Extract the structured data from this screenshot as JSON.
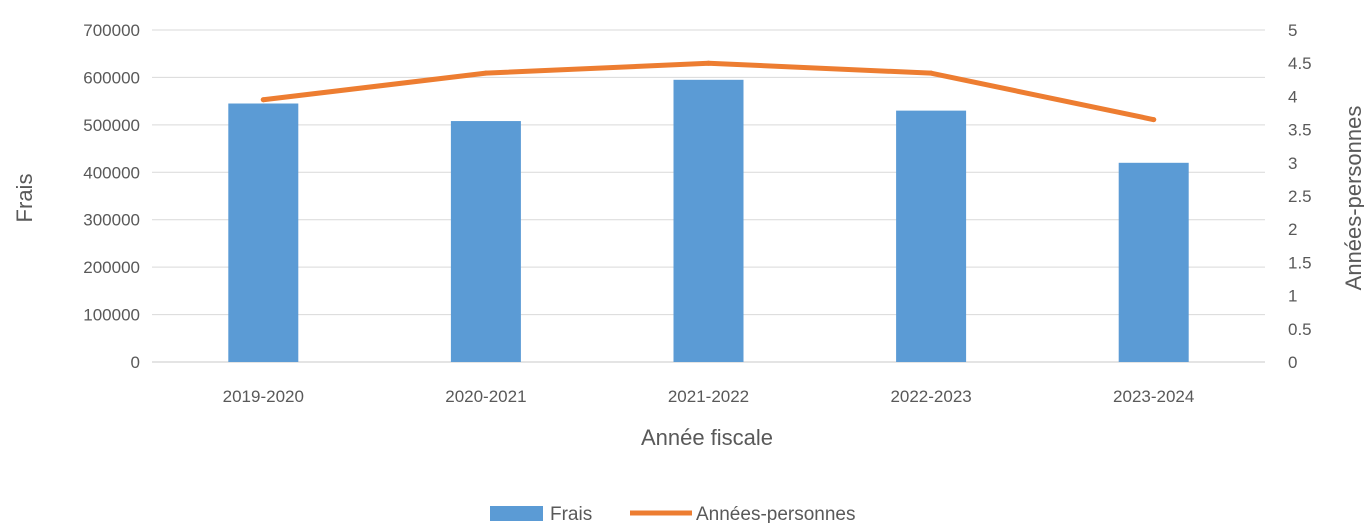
{
  "chart_data": {
    "type": "bar",
    "categories": [
      "2019-2020",
      "2020-2021",
      "2021-2022",
      "2022-2023",
      "2023-2024"
    ],
    "series": [
      {
        "name": "Frais",
        "type": "bar",
        "axis": "left",
        "color": "#5B9BD5",
        "values": [
          545000,
          508000,
          595000,
          530000,
          420000
        ]
      },
      {
        "name": "Années-personnes",
        "type": "line",
        "axis": "right",
        "color": "#ED7D31",
        "values": [
          3.95,
          4.35,
          4.5,
          4.35,
          3.65
        ]
      }
    ],
    "xlabel": "Année fiscale",
    "ylabel": "Frais",
    "y2label": "Années-personnes",
    "ylim": [
      0,
      700000
    ],
    "y2lim": [
      0,
      5
    ],
    "yticks": [
      "0",
      "100000",
      "200000",
      "300000",
      "400000",
      "500000",
      "600000",
      "700000"
    ],
    "y2ticks": [
      "0",
      "0.5",
      "1",
      "1.5",
      "2",
      "2.5",
      "3",
      "3.5",
      "4",
      "4.5",
      "5"
    ],
    "grid": true,
    "legend": "bottom"
  }
}
